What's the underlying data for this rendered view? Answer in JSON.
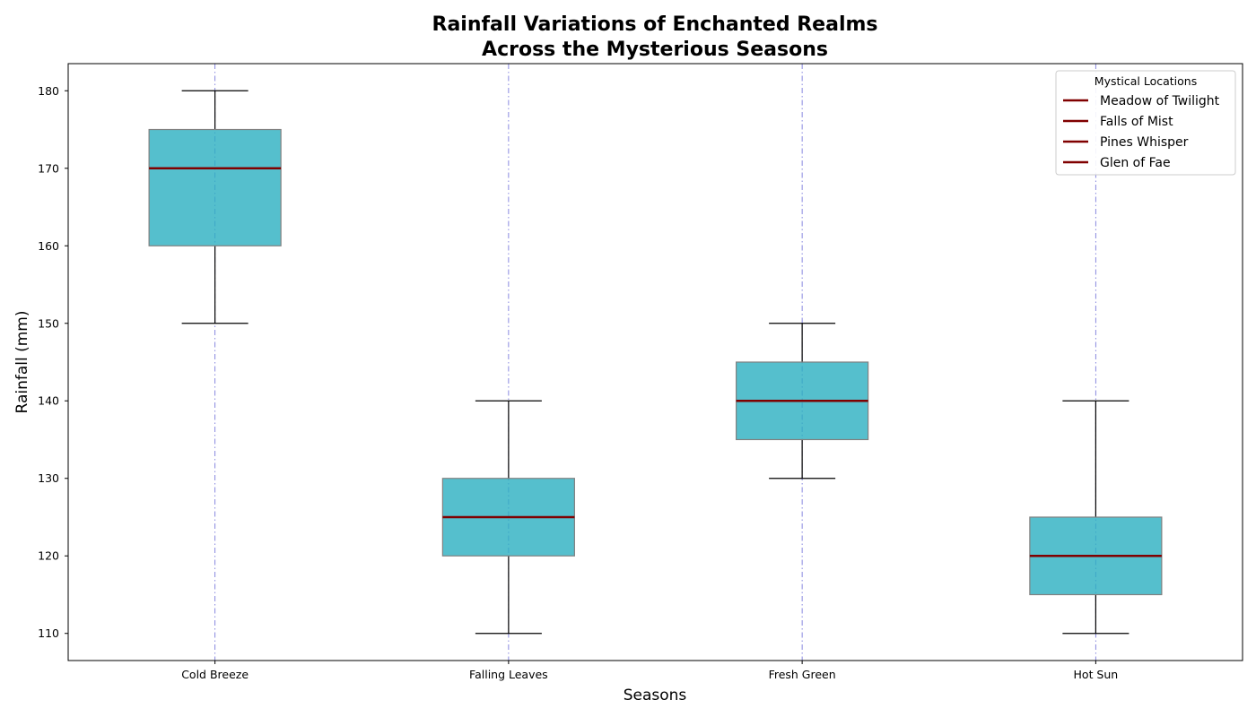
{
  "chart_data": {
    "type": "box",
    "title_lines": [
      "Rainfall Variations of Enchanted Realms",
      "Across the Mysterious Seasons"
    ],
    "xlabel": "Seasons",
    "ylabel": "Rainfall (mm)",
    "ylim": [
      106.5,
      183.5
    ],
    "yticks": [
      110,
      120,
      130,
      140,
      150,
      160,
      170,
      180
    ],
    "categories": [
      "Cold Breeze",
      "Falling Leaves",
      "Fresh Green",
      "Hot Sun"
    ],
    "boxes": [
      {
        "category": "Cold Breeze",
        "min": 150,
        "q1": 160,
        "median": 170,
        "q3": 175,
        "max": 180
      },
      {
        "category": "Falling Leaves",
        "min": 110,
        "q1": 120,
        "median": 125,
        "q3": 130,
        "max": 140
      },
      {
        "category": "Fresh Green",
        "min": 130,
        "q1": 135,
        "median": 140,
        "q3": 145,
        "max": 150
      },
      {
        "category": "Hot Sun",
        "min": 110,
        "q1": 115,
        "median": 120,
        "q3": 125,
        "max": 140
      }
    ],
    "legend": {
      "title": "Mystical Locations",
      "placement": "top-right",
      "entries": [
        "Meadow of Twilight",
        "Falls of Mist",
        "Pines Whisper",
        "Glen of Fae"
      ]
    },
    "grid": {
      "x": true,
      "y": false,
      "style": "dash-dot"
    },
    "colors": {
      "box_fill": "#2bafc0",
      "box_edge": "#808080",
      "median": "#800000",
      "whisker": "#000000",
      "grid": "#7b7bdc"
    }
  }
}
